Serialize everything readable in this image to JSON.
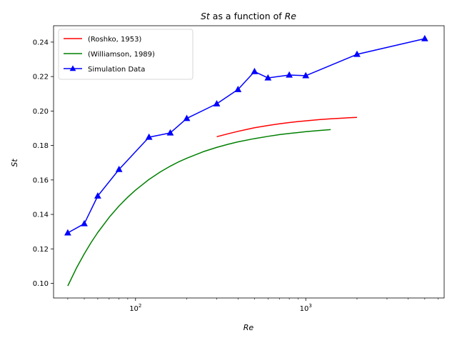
{
  "chart_data": {
    "type": "line",
    "title": "St as a function of Re",
    "title_parts": {
      "v1": "St",
      "mid": " as a function of ",
      "v2": "Re"
    },
    "xlabel": "Re",
    "ylabel": "St",
    "xscale": "log",
    "xlim": [
      33,
      6500
    ],
    "ylim": [
      0.0915,
      0.2495
    ],
    "x_major_ticks": [
      100,
      1000
    ],
    "x_tick_labels": {
      "base": "10",
      "exps": [
        "2",
        "3"
      ]
    },
    "y_ticks": [
      0.1,
      0.12,
      0.14,
      0.16,
      0.18,
      0.2,
      0.22,
      0.24
    ],
    "y_tick_labels": [
      "0.10",
      "0.12",
      "0.14",
      "0.16",
      "0.18",
      "0.20",
      "0.22",
      "0.24"
    ],
    "grid": false,
    "legend_position": "top-left",
    "series": [
      {
        "name": "(Roshko, 1953)",
        "color": "#ff0000",
        "marker": "none",
        "x": [
          300,
          350,
          400,
          450,
          500,
          600,
          700,
          800,
          900,
          1000,
          1200,
          1400,
          1600,
          1800,
          2000
        ],
        "y": [
          0.1851,
          0.1868,
          0.1882,
          0.1893,
          0.1903,
          0.1916,
          0.1926,
          0.1933,
          0.1939,
          0.1943,
          0.195,
          0.1955,
          0.1958,
          0.1961,
          0.1963
        ]
      },
      {
        "name": "(Williamson, 1989)",
        "color": "#008000",
        "marker": "none",
        "x": [
          40,
          45,
          50,
          55,
          60,
          70,
          80,
          90,
          100,
          120,
          140,
          160,
          180,
          200,
          250,
          300,
          350,
          400,
          500,
          600,
          700,
          800,
          900,
          1000,
          1200,
          1400
        ],
        "y": [
          0.0985,
          0.1089,
          0.1171,
          0.1239,
          0.1295,
          0.1383,
          0.1449,
          0.15,
          0.1541,
          0.1603,
          0.1647,
          0.168,
          0.1706,
          0.1726,
          0.1764,
          0.1789,
          0.1807,
          0.1821,
          0.184,
          0.1853,
          0.1863,
          0.187,
          0.1875,
          0.188,
          0.1887,
          0.1892
        ]
      },
      {
        "name": "Simulation Data",
        "color": "#0000ff",
        "marker": "triangle",
        "x": [
          40,
          50,
          60,
          80,
          120,
          160,
          200,
          300,
          400,
          500,
          600,
          800,
          1000,
          2000,
          5000
        ],
        "y": [
          0.1293,
          0.1346,
          0.1507,
          0.1661,
          0.1848,
          0.1873,
          0.1957,
          0.2042,
          0.2125,
          0.2229,
          0.2192,
          0.2209,
          0.2205,
          0.2329,
          0.242
        ]
      }
    ]
  }
}
